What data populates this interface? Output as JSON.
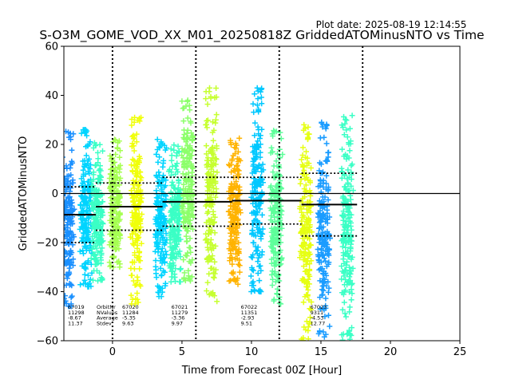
{
  "plot_date": "Plot date: 2025-08-19 12:14:55",
  "chart_data": {
    "type": "scatter",
    "title": "S-O3M_GOME_VOD_XX_M01_20250818Z GriddedATOMinusNTO vs Time",
    "xlabel": "Time from Forecast 00Z [Hour]",
    "ylabel": "GriddedATOMinusNTO",
    "xlim": [
      -3.5,
      25
    ],
    "ylim": [
      -60,
      60
    ],
    "xticks": [
      0,
      5,
      10,
      15,
      20,
      25
    ],
    "yticks": [
      -60,
      -40,
      -20,
      0,
      20,
      40,
      60
    ],
    "grid": false,
    "zero_line": 0,
    "forecast_markers": [
      0,
      6,
      12,
      18
    ],
    "marker": "+",
    "colormap": "jet",
    "swaths": [
      {
        "t": -3.2,
        "color": "#1a90ff",
        "y_max": 26,
        "y_min": -46
      },
      {
        "t": -1.9,
        "color": "#00d4ff",
        "y_max": 26,
        "y_min": -38
      },
      {
        "t": -1.1,
        "color": "#3affc5",
        "y_max": 21,
        "y_min": -36
      },
      {
        "t": 0.2,
        "color": "#a6ff52",
        "y_max": 22,
        "y_min": -30
      },
      {
        "t": 1.7,
        "color": "#f0ff0a",
        "y_max": 31,
        "y_min": -45
      },
      {
        "t": 3.5,
        "color": "#00d4ff",
        "y_max": 22,
        "y_min": -42
      },
      {
        "t": 4.5,
        "color": "#3affc5",
        "y_max": 20,
        "y_min": -36
      },
      {
        "t": 5.4,
        "color": "#8cff6a",
        "y_max": 38,
        "y_min": -36
      },
      {
        "t": 7.1,
        "color": "#c6ff30",
        "y_max": 43,
        "y_min": -44
      },
      {
        "t": 8.8,
        "color": "#ffb300",
        "y_max": 23,
        "y_min": -37
      },
      {
        "t": 10.4,
        "color": "#00c8ff",
        "y_max": 43,
        "y_min": -40
      },
      {
        "t": 11.8,
        "color": "#5dff9a",
        "y_max": 27,
        "y_min": -45
      },
      {
        "t": 13.9,
        "color": "#e6ff12",
        "y_max": 28,
        "y_min": -60
      },
      {
        "t": 15.2,
        "color": "#1a9cff",
        "y_max": 29,
        "y_min": -60
      },
      {
        "t": 16.9,
        "color": "#3affc5",
        "y_max": 32,
        "y_min": -60
      }
    ],
    "orbits": [
      {
        "orbit": "67019",
        "nvalues": "11298",
        "average": "-8.67",
        "stdev": "11.37",
        "t_start": -3.5,
        "t_end": -1.2,
        "mean": -8.67,
        "upper": 2.7,
        "lower": -20.0
      },
      {
        "orbit": "67020",
        "nvalues": "11284",
        "average": "-5.35",
        "stdev": "9.63",
        "t_start": -1.2,
        "t_end": 3.6,
        "mean": -5.35,
        "upper": 4.28,
        "lower": -14.98
      },
      {
        "orbit": "67021",
        "nvalues": "11279",
        "average": "-3.36",
        "stdev": "9.97",
        "t_start": 3.6,
        "t_end": 8.6,
        "mean": -3.36,
        "upper": 6.61,
        "lower": -13.33
      },
      {
        "orbit": "67022",
        "nvalues": "11351",
        "average": "-2.93",
        "stdev": "9.51",
        "t_start": 8.6,
        "t_end": 13.6,
        "mean": -2.93,
        "upper": 6.58,
        "lower": -12.44
      },
      {
        "orbit": "67023",
        "nvalues": "9311",
        "average": "-4.53",
        "stdev": "12.77",
        "t_start": 13.6,
        "t_end": 17.6,
        "mean": -4.53,
        "upper": 8.24,
        "lower": -17.3
      }
    ],
    "stat_labels": {
      "orbit": "OrbitNr",
      "nvalues": "NValues",
      "average": "Average",
      "stdev": "Stdev"
    },
    "stat_label_orbit": "67020"
  }
}
